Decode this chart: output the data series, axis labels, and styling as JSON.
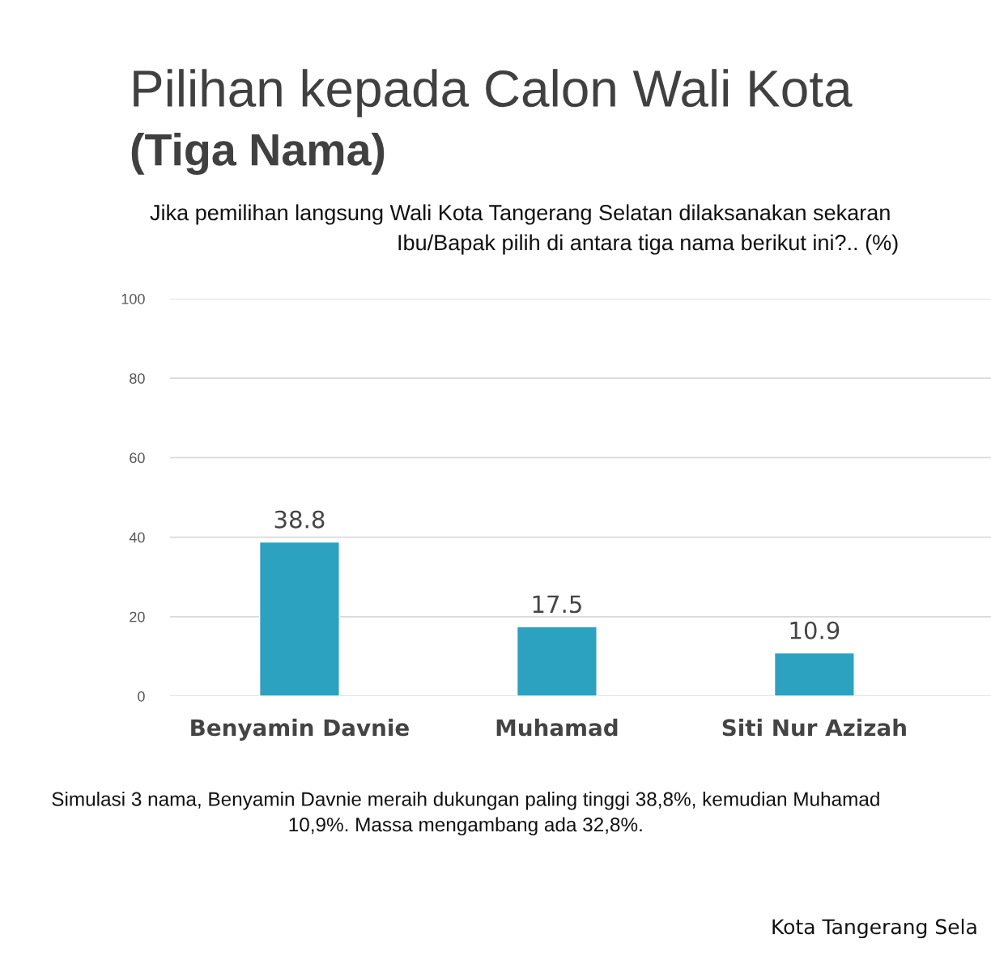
{
  "chart_data": {
    "type": "bar",
    "title": "Pilihan kepada Calon Wali Kota\n(Tiga Nama)",
    "subtitle": "Jika pemilihan langsung Wali Kota Tangerang Selatan dilaksanakan sekaran\nIbu/Bapak pilih di antara tiga nama berikut ini?.. (%)",
    "categories": [
      "Benyamin Davnie",
      "Muhamad",
      "Siti Nur Azizah"
    ],
    "values": [
      38.8,
      17.5,
      10.9
    ],
    "color": "#2ca1c0",
    "ylim": [
      0,
      100
    ],
    "yticks": [
      0,
      20,
      40,
      60,
      80,
      100
    ],
    "grid": "y",
    "data_labels": true,
    "annotations": [
      "Simulasi 3 nama, Benyamin Davnie meraih dukungan paling tinggi 38,8%, kemudian Muhamad\n10,9%. Massa mengambang ada 32,8%.",
      "Kota Tangerang Sela"
    ]
  }
}
